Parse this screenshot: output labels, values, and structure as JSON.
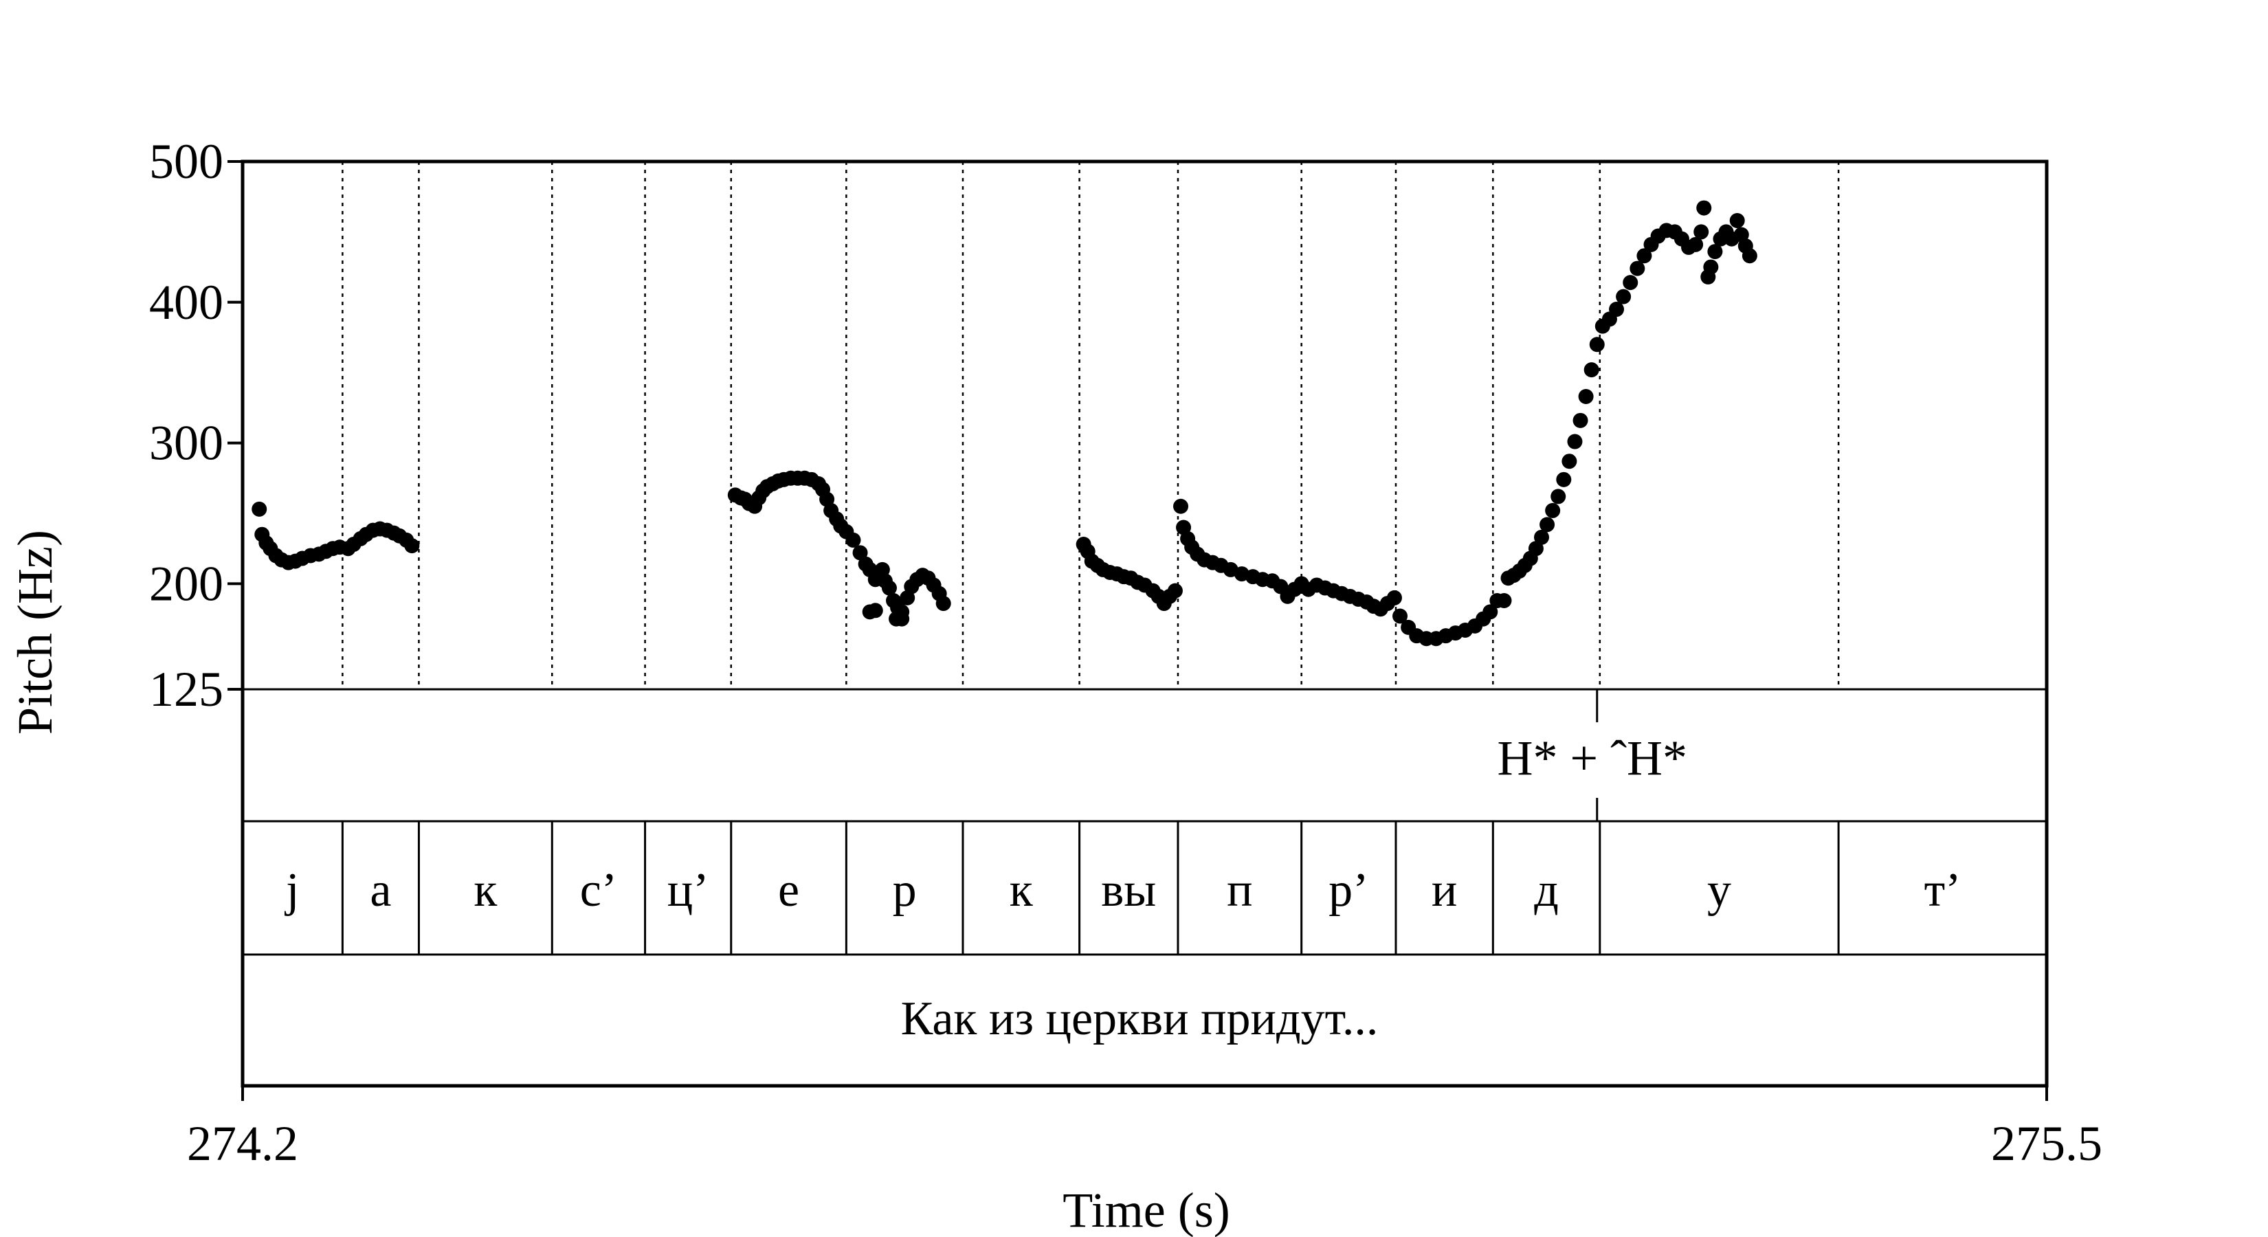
{
  "chart_data": {
    "type": "scatter",
    "title": "",
    "xlabel": "Time (s)",
    "ylabel": "Pitch (Hz)",
    "xlim": [
      274.2,
      275.5
    ],
    "ylim": [
      125,
      500
    ],
    "x_tick_labels": [
      "274.2",
      "275.5"
    ],
    "y_ticks": [
      125,
      200,
      300,
      400,
      500
    ],
    "y_tick_labels": [
      "125",
      "200",
      "300",
      "400",
      "500"
    ],
    "grid": false,
    "tone_tier": [
      {
        "time": 275.176,
        "label": "H* + ˆH*"
      }
    ],
    "segments": [
      {
        "start": 274.2,
        "end": 274.272,
        "label": "j"
      },
      {
        "start": 274.272,
        "end": 274.327,
        "label": "а"
      },
      {
        "start": 274.327,
        "end": 274.423,
        "label": "к"
      },
      {
        "start": 274.423,
        "end": 274.49,
        "label": "с’"
      },
      {
        "start": 274.49,
        "end": 274.552,
        "label": "ц’"
      },
      {
        "start": 274.552,
        "end": 274.635,
        "label": "е"
      },
      {
        "start": 274.635,
        "end": 274.719,
        "label": "р"
      },
      {
        "start": 274.719,
        "end": 274.803,
        "label": "к"
      },
      {
        "start": 274.803,
        "end": 274.874,
        "label": "вы"
      },
      {
        "start": 274.874,
        "end": 274.963,
        "label": "п"
      },
      {
        "start": 274.963,
        "end": 275.031,
        "label": "р’"
      },
      {
        "start": 275.031,
        "end": 275.101,
        "label": "и"
      },
      {
        "start": 275.101,
        "end": 275.178,
        "label": "д"
      },
      {
        "start": 275.178,
        "end": 275.35,
        "label": "у"
      },
      {
        "start": 275.35,
        "end": 275.5,
        "label": "т’"
      }
    ],
    "sentence": "Как из церкви придут...",
    "pitch_points": [
      [
        274.212,
        253
      ],
      [
        274.214,
        235
      ],
      [
        274.217,
        229
      ],
      [
        274.22,
        225
      ],
      [
        274.224,
        220
      ],
      [
        274.228,
        217
      ],
      [
        274.233,
        215
      ],
      [
        274.238,
        216
      ],
      [
        274.243,
        218
      ],
      [
        274.249,
        220
      ],
      [
        274.255,
        221
      ],
      [
        274.26,
        223
      ],
      [
        274.265,
        225
      ],
      [
        274.27,
        226
      ],
      [
        274.276,
        225
      ],
      [
        274.28,
        228
      ],
      [
        274.285,
        232
      ],
      [
        274.289,
        235
      ],
      [
        274.294,
        238
      ],
      [
        274.299,
        239
      ],
      [
        274.304,
        238
      ],
      [
        274.309,
        236
      ],
      [
        274.313,
        234
      ],
      [
        274.318,
        231
      ],
      [
        274.322,
        227
      ],
      [
        274.555,
        263
      ],
      [
        274.559,
        261
      ],
      [
        274.562,
        260
      ],
      [
        274.565,
        257
      ],
      [
        274.569,
        255
      ],
      [
        274.572,
        261
      ],
      [
        274.575,
        266
      ],
      [
        274.578,
        269
      ],
      [
        274.582,
        271
      ],
      [
        274.586,
        273
      ],
      [
        274.59,
        274
      ],
      [
        274.595,
        275
      ],
      [
        274.6,
        275
      ],
      [
        274.605,
        275
      ],
      [
        274.61,
        274
      ],
      [
        274.615,
        271
      ],
      [
        274.618,
        267
      ],
      [
        274.621,
        260
      ],
      [
        274.624,
        252
      ],
      [
        274.628,
        246
      ],
      [
        274.631,
        241
      ],
      [
        274.635,
        237
      ],
      [
        274.64,
        231
      ],
      [
        274.645,
        222
      ],
      [
        274.649,
        214
      ],
      [
        274.652,
        210
      ],
      [
        274.656,
        203
      ],
      [
        274.659,
        206
      ],
      [
        274.661,
        210
      ],
      [
        274.663,
        202
      ],
      [
        274.666,
        197
      ],
      [
        274.669,
        188
      ],
      [
        274.672,
        183
      ],
      [
        274.675,
        180
      ],
      [
        274.679,
        190
      ],
      [
        274.682,
        198
      ],
      [
        274.686,
        203
      ],
      [
        274.69,
        206
      ],
      [
        274.694,
        204
      ],
      [
        274.698,
        199
      ],
      [
        274.702,
        193
      ],
      [
        274.705,
        186
      ],
      [
        274.652,
        180
      ],
      [
        274.656,
        181
      ],
      [
        274.671,
        175
      ],
      [
        274.675,
        175
      ],
      [
        274.806,
        228
      ],
      [
        274.809,
        223
      ],
      [
        274.812,
        216
      ],
      [
        274.816,
        213
      ],
      [
        274.82,
        210
      ],
      [
        274.825,
        208
      ],
      [
        274.83,
        207
      ],
      [
        274.835,
        205
      ],
      [
        274.84,
        204
      ],
      [
        274.845,
        201
      ],
      [
        274.85,
        199
      ],
      [
        274.856,
        195
      ],
      [
        274.86,
        191
      ],
      [
        274.864,
        186
      ],
      [
        274.868,
        191
      ],
      [
        274.872,
        195
      ],
      [
        274.876,
        255
      ],
      [
        274.878,
        240
      ],
      [
        274.881,
        232
      ],
      [
        274.884,
        226
      ],
      [
        274.888,
        221
      ],
      [
        274.893,
        217
      ],
      [
        274.899,
        215
      ],
      [
        274.905,
        213
      ],
      [
        274.912,
        210
      ],
      [
        274.92,
        207
      ],
      [
        274.928,
        205
      ],
      [
        274.935,
        203
      ],
      [
        274.942,
        202
      ],
      [
        274.948,
        198
      ],
      [
        274.953,
        191
      ],
      [
        274.958,
        196
      ],
      [
        274.963,
        200
      ],
      [
        274.968,
        196
      ],
      [
        274.974,
        199
      ],
      [
        274.98,
        197
      ],
      [
        274.986,
        195
      ],
      [
        274.992,
        193
      ],
      [
        274.998,
        191
      ],
      [
        275.004,
        189
      ],
      [
        275.01,
        187
      ],
      [
        275.015,
        184
      ],
      [
        275.02,
        182
      ],
      [
        275.025,
        186
      ],
      [
        275.03,
        190
      ],
      [
        275.034,
        177
      ],
      [
        275.04,
        169
      ],
      [
        275.046,
        163
      ],
      [
        275.053,
        161
      ],
      [
        275.06,
        161
      ],
      [
        275.067,
        163
      ],
      [
        275.074,
        165
      ],
      [
        275.081,
        167
      ],
      [
        275.088,
        170
      ],
      [
        275.094,
        175
      ],
      [
        275.099,
        180
      ],
      [
        275.104,
        188
      ],
      [
        275.109,
        188
      ],
      [
        275.112,
        204
      ],
      [
        275.116,
        206
      ],
      [
        275.12,
        209
      ],
      [
        275.124,
        213
      ],
      [
        275.128,
        218
      ],
      [
        275.132,
        225
      ],
      [
        275.136,
        233
      ],
      [
        275.14,
        242
      ],
      [
        275.144,
        252
      ],
      [
        275.148,
        262
      ],
      [
        275.152,
        274
      ],
      [
        275.156,
        287
      ],
      [
        275.16,
        301
      ],
      [
        275.164,
        316
      ],
      [
        275.168,
        333
      ],
      [
        275.172,
        352
      ],
      [
        275.176,
        370
      ],
      [
        275.18,
        383
      ],
      [
        275.185,
        388
      ],
      [
        275.19,
        395
      ],
      [
        275.195,
        404
      ],
      [
        275.2,
        414
      ],
      [
        275.205,
        424
      ],
      [
        275.21,
        433
      ],
      [
        275.215,
        441
      ],
      [
        275.22,
        447
      ],
      [
        275.226,
        451
      ],
      [
        275.232,
        450
      ],
      [
        275.237,
        445
      ],
      [
        275.242,
        439
      ],
      [
        275.247,
        441
      ],
      [
        275.251,
        450
      ],
      [
        275.253,
        467
      ],
      [
        275.256,
        418
      ],
      [
        275.258,
        425
      ],
      [
        275.261,
        436
      ],
      [
        275.265,
        445
      ],
      [
        275.269,
        450
      ],
      [
        275.273,
        445
      ],
      [
        275.277,
        458
      ],
      [
        275.28,
        448
      ],
      [
        275.283,
        440
      ],
      [
        275.286,
        433
      ]
    ]
  }
}
